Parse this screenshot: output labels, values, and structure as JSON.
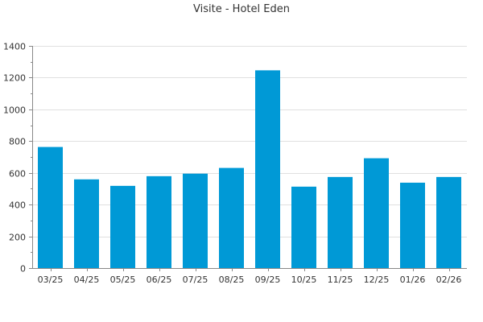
{
  "chart_data": {
    "type": "bar",
    "title": "Visite - Hotel Eden",
    "xlabel": "",
    "ylabel": "",
    "categories": [
      "03/25",
      "04/25",
      "05/25",
      "06/25",
      "07/25",
      "08/25",
      "09/25",
      "10/25",
      "11/25",
      "12/25",
      "01/26",
      "02/26"
    ],
    "values": [
      763,
      559,
      518,
      579,
      595,
      631,
      1246,
      513,
      574,
      692,
      538,
      574
    ],
    "ylim": [
      0,
      1400
    ],
    "yticks": [
      0,
      200,
      400,
      600,
      800,
      1000,
      1200,
      1400
    ],
    "grid": true,
    "legend": "none",
    "bar_color": "#0099d6"
  }
}
